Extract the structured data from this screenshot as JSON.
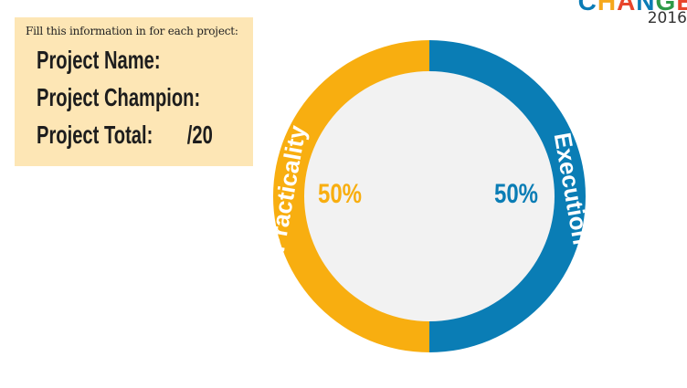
{
  "info_card": {
    "instruction": "Fill this information in for each project:",
    "project_name_label": "Project Name:",
    "project_champion_label": "Project Champion:",
    "project_total_label": "Project Total:",
    "project_total_suffix": "/20"
  },
  "logo": {
    "word_letters": [
      "C",
      "H",
      "A",
      "N",
      "G",
      "E"
    ],
    "letter_colors": [
      "#0a7cb5",
      "#f6a81c",
      "#e8452c",
      "#0a7cb5",
      "#2e9a48",
      "#e8452c"
    ],
    "year": "2016"
  },
  "chart_data": {
    "type": "pie",
    "style": "donut",
    "slices": [
      {
        "name": "Practicality",
        "value": 50,
        "label": "50%",
        "color": "#f8ae10"
      },
      {
        "name": "Execution",
        "value": 50,
        "label": "50%",
        "color": "#0a7db5"
      }
    ],
    "center_color": "#f2f2f2",
    "ring_label_color": "#ffffff"
  }
}
